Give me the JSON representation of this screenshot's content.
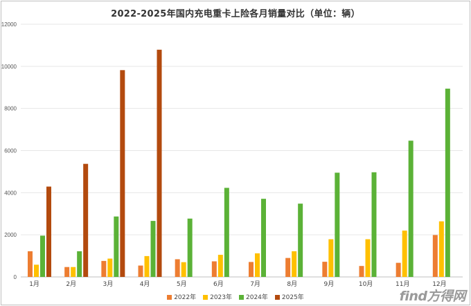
{
  "chart_data": {
    "type": "bar",
    "title": "2022-2025年国内充电重卡上险各月销量对比（单位：辆）",
    "categories": [
      "1月",
      "2月",
      "3月",
      "4月",
      "5月",
      "6月",
      "7月",
      "8月",
      "9月",
      "10月",
      "11月",
      "12月"
    ],
    "ylim": [
      0,
      12000
    ],
    "yticks": [
      0,
      2000,
      4000,
      6000,
      8000,
      10000,
      12000
    ],
    "grid": true,
    "legend_position": "bottom",
    "series": [
      {
        "name": "2022年",
        "color": "#ED7D31",
        "values": [
          1220,
          470,
          760,
          540,
          840,
          740,
          710,
          900,
          720,
          520,
          670,
          1990
        ]
      },
      {
        "name": "2023年",
        "color": "#FFC000",
        "values": [
          580,
          470,
          870,
          990,
          700,
          1050,
          1120,
          1220,
          1790,
          1790,
          2200,
          2640
        ]
      },
      {
        "name": "2024年",
        "color": "#5BB237",
        "values": [
          1960,
          1220,
          2870,
          2660,
          2770,
          4230,
          3710,
          3480,
          4950,
          4970,
          6470,
          8940
        ]
      },
      {
        "name": "2025年",
        "color": "#B34A0E",
        "values": [
          4290,
          5370,
          9820,
          10790,
          null,
          null,
          null,
          null,
          null,
          null,
          null,
          null
        ]
      }
    ]
  },
  "watermark": "find方得网"
}
